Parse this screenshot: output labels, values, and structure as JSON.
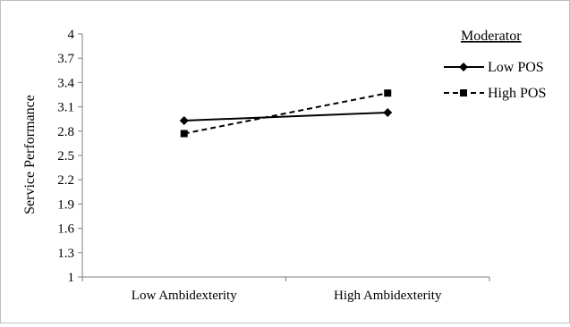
{
  "chart_data": {
    "type": "line",
    "categories": [
      "Low Ambidexterity",
      "High Ambidexterity"
    ],
    "ylabel": "Service Performance",
    "xlabel": "",
    "ylim": [
      1,
      4
    ],
    "yticks": [
      "1",
      "1.3",
      "1.6",
      "1.9",
      "2.2",
      "2.5",
      "2.8",
      "3.1",
      "3.4",
      "3.7",
      "4"
    ],
    "grid": false,
    "legend": {
      "title": "Moderator",
      "position": "top-right"
    },
    "series": [
      {
        "name": "Low POS",
        "values": [
          2.93,
          3.03
        ],
        "marker": "diamond",
        "line_style": "solid",
        "color": "#000000"
      },
      {
        "name": "High POS",
        "values": [
          2.77,
          3.27
        ],
        "marker": "square",
        "line_style": "dashed",
        "color": "#000000"
      }
    ]
  }
}
